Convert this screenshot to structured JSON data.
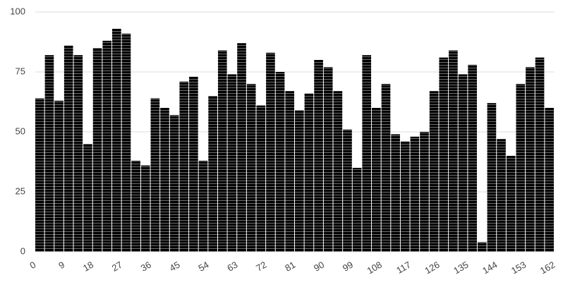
{
  "chart_data": {
    "type": "histogram",
    "bins": [
      0,
      3,
      6,
      9,
      12,
      15,
      18,
      21,
      24,
      27,
      30,
      33,
      36,
      39,
      42,
      45,
      48,
      51,
      54,
      57,
      60,
      63,
      66,
      69,
      72,
      75,
      78,
      81,
      84,
      87,
      90,
      93,
      96,
      99,
      102,
      105,
      108,
      111,
      114,
      117,
      120,
      123,
      126,
      129,
      132,
      135,
      138,
      141,
      144,
      147,
      150,
      153,
      156,
      159,
      162
    ],
    "values": [
      64,
      82,
      63,
      86,
      82,
      45,
      85,
      88,
      93,
      91,
      38,
      36,
      64,
      60,
      57,
      71,
      73,
      38,
      65,
      84,
      74,
      87,
      70,
      61,
      83,
      75,
      67,
      59,
      66,
      80,
      77,
      67,
      51,
      35,
      82,
      60,
      70,
      49,
      46,
      48,
      50,
      67,
      81,
      84,
      74,
      78,
      4,
      62,
      47,
      40,
      70,
      77,
      81,
      60
    ],
    "color": "#3366cc",
    "xlim": [
      0,
      162
    ],
    "xticks": [
      0,
      9,
      18,
      27,
      36,
      45,
      54,
      63,
      72,
      81,
      90,
      99,
      108,
      117,
      126,
      135,
      144,
      153,
      162
    ],
    "ylim": [
      0,
      100
    ],
    "yticks": [
      0,
      25,
      50,
      75,
      100
    ],
    "grid": true
  }
}
